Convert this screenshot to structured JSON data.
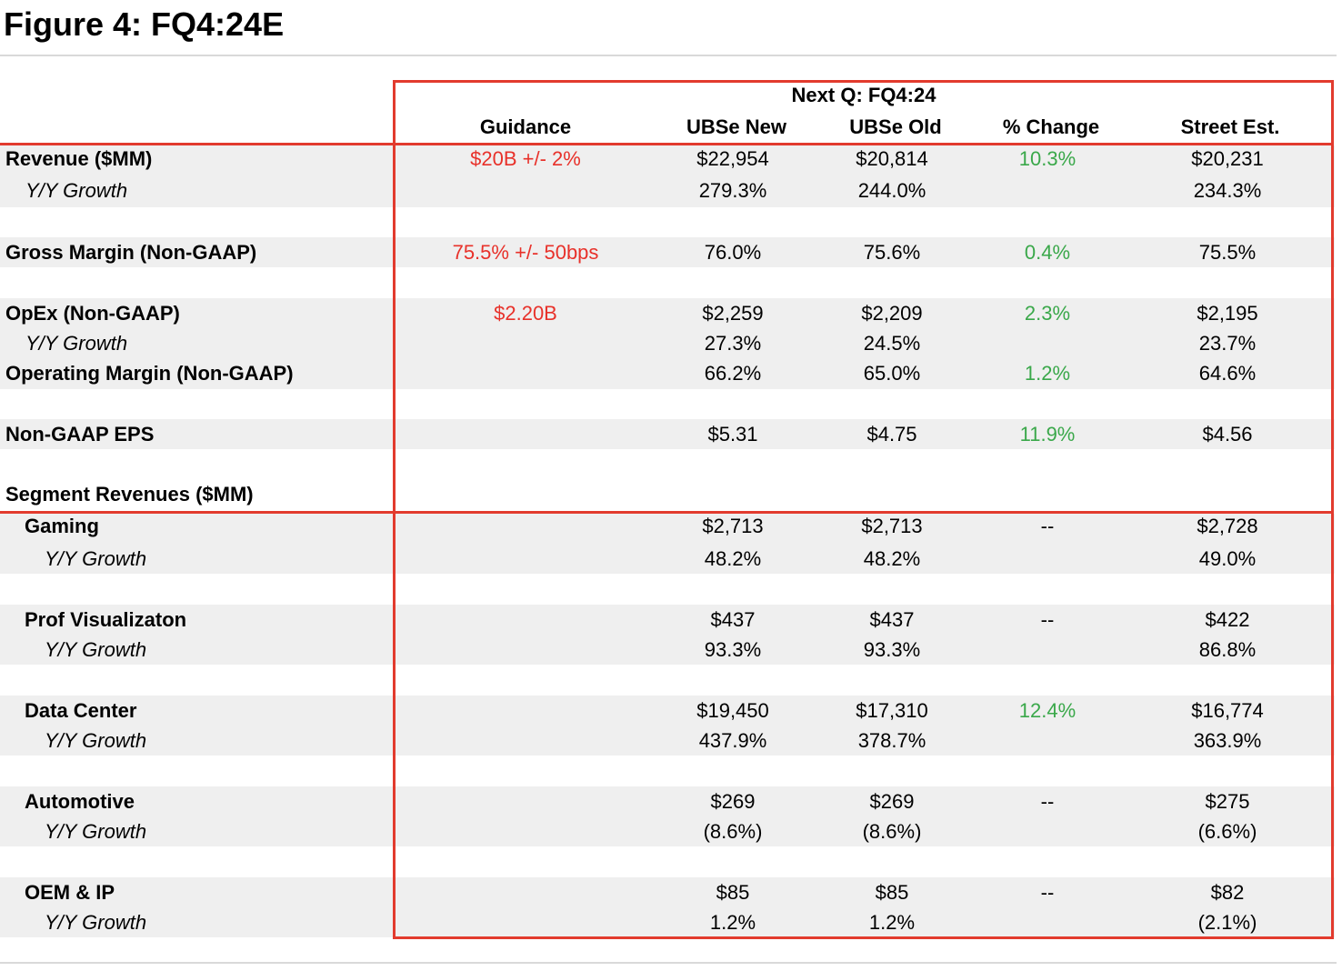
{
  "title": "Figure 4: FQ4:24E",
  "header": {
    "group_label": "Next Q: FQ4:24",
    "columns": [
      "Guidance",
      "UBSe New",
      "UBSe Old",
      "% Change",
      "Street Est."
    ]
  },
  "rows": [
    {
      "label": "Revenue ($MM)",
      "style": "bold",
      "guidance": "$20B +/- 2%",
      "new": "$22,954",
      "old": "$20,814",
      "change": "10.3%",
      "street": "$20,231"
    },
    {
      "label": "Y/Y Growth",
      "style": "italic",
      "guidance": "",
      "new": "279.3%",
      "old": "244.0%",
      "change": "",
      "street": "234.3%"
    },
    {
      "label": "Gross Margin (Non-GAAP)",
      "style": "bold",
      "guidance": "75.5% +/- 50bps",
      "new": "76.0%",
      "old": "75.6%",
      "change": "0.4%",
      "street": "75.5%"
    },
    {
      "label": "OpEx (Non-GAAP)",
      "style": "bold",
      "guidance": "$2.20B",
      "new": "$2,259",
      "old": "$2,209",
      "change": "2.3%",
      "street": "$2,195"
    },
    {
      "label": "Y/Y Growth",
      "style": "italic",
      "guidance": "",
      "new": "27.3%",
      "old": "24.5%",
      "change": "",
      "street": "23.7%"
    },
    {
      "label": "Operating Margin (Non-GAAP)",
      "style": "bold",
      "guidance": "",
      "new": "66.2%",
      "old": "65.0%",
      "change": "1.2%",
      "street": "64.6%"
    },
    {
      "label": "Non-GAAP EPS",
      "style": "bold",
      "guidance": "",
      "new": "$5.31",
      "old": "$4.75",
      "change": "11.9%",
      "street": "$4.56"
    },
    {
      "label": "Segment Revenues ($MM)",
      "style": "bold",
      "guidance": "",
      "new": "",
      "old": "",
      "change": "",
      "street": ""
    },
    {
      "label": "Gaming",
      "style": "bold",
      "guidance": "",
      "new": "$2,713",
      "old": "$2,713",
      "change": "--",
      "street": "$2,728"
    },
    {
      "label": "Y/Y Growth",
      "style": "italic",
      "guidance": "",
      "new": "48.2%",
      "old": "48.2%",
      "change": "",
      "street": "49.0%"
    },
    {
      "label": "Prof Visualizaton",
      "style": "bold",
      "guidance": "",
      "new": "$437",
      "old": "$437",
      "change": "--",
      "street": "$422"
    },
    {
      "label": "Y/Y Growth",
      "style": "italic",
      "guidance": "",
      "new": "93.3%",
      "old": "93.3%",
      "change": "",
      "street": "86.8%"
    },
    {
      "label": "Data Center",
      "style": "bold",
      "guidance": "",
      "new": "$19,450",
      "old": "$17,310",
      "change": "12.4%",
      "street": "$16,774"
    },
    {
      "label": "Y/Y Growth",
      "style": "italic",
      "guidance": "",
      "new": "437.9%",
      "old": "378.7%",
      "change": "",
      "street": "363.9%"
    },
    {
      "label": "Automotive",
      "style": "bold",
      "guidance": "",
      "new": "$269",
      "old": "$269",
      "change": "--",
      "street": "$275"
    },
    {
      "label": "Y/Y Growth",
      "style": "italic",
      "guidance": "",
      "new": "(8.6%)",
      "old": "(8.6%)",
      "change": "",
      "street": "(6.6%)"
    },
    {
      "label": "OEM & IP",
      "style": "bold",
      "guidance": "",
      "new": "$85",
      "old": "$85",
      "change": "--",
      "street": "$82"
    },
    {
      "label": "Y/Y Growth",
      "style": "italic",
      "guidance": "",
      "new": "1.2%",
      "old": "1.2%",
      "change": "",
      "street": "(2.1%)"
    }
  ],
  "colors": {
    "guidance": "#e8312a",
    "change": "#3aa84a",
    "highlight_box": "#e23b2e",
    "band": "#efefef"
  }
}
